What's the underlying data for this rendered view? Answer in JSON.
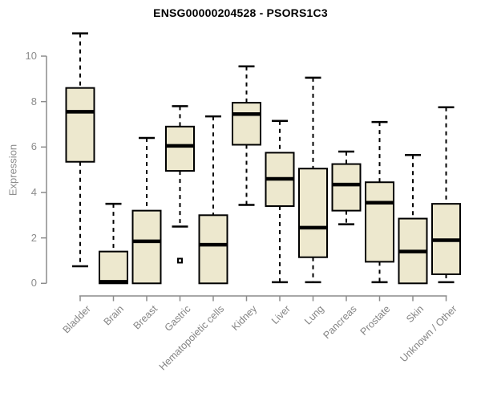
{
  "title": "ENSG00000204528 - PSORS1C3",
  "chart_data": {
    "type": "boxplot",
    "title": "ENSG00000204528 - PSORS1C3",
    "ylabel": "Expression",
    "xlabel": "",
    "ylim": [
      0,
      10
    ],
    "yticks": [
      0,
      2,
      4,
      6,
      8,
      10
    ],
    "grid": false,
    "legend": "none",
    "categories": [
      "Bladder",
      "Brain",
      "Breast",
      "Gastric",
      "Hematopoietic cells",
      "Kidney",
      "Liver",
      "Lung",
      "Pancreas",
      "Prostate",
      "Skin",
      "Unknown / Other"
    ],
    "series": [
      {
        "name": "Bladder",
        "min": 0.75,
        "q1": 5.35,
        "median": 7.55,
        "q3": 8.6,
        "max": 11.0,
        "outliers": []
      },
      {
        "name": "Brain",
        "min": 0.0,
        "q1": 0.0,
        "median": 0.07,
        "q3": 1.4,
        "max": 3.5,
        "outliers": []
      },
      {
        "name": "Breast",
        "min": 0.0,
        "q1": 0.0,
        "median": 1.85,
        "q3": 3.2,
        "max": 6.4,
        "outliers": []
      },
      {
        "name": "Gastric",
        "min": 2.5,
        "q1": 4.95,
        "median": 6.05,
        "q3": 6.9,
        "max": 7.8,
        "outliers": [
          1.0
        ]
      },
      {
        "name": "Hematopoietic cells",
        "min": 0.0,
        "q1": 0.0,
        "median": 1.7,
        "q3": 3.0,
        "max": 7.35,
        "outliers": []
      },
      {
        "name": "Kidney",
        "min": 3.45,
        "q1": 6.1,
        "median": 7.45,
        "q3": 7.95,
        "max": 9.55,
        "outliers": []
      },
      {
        "name": "Liver",
        "min": 0.05,
        "q1": 3.4,
        "median": 4.6,
        "q3": 5.75,
        "max": 7.15,
        "outliers": []
      },
      {
        "name": "Lung",
        "min": 0.05,
        "q1": 1.15,
        "median": 2.45,
        "q3": 5.05,
        "max": 9.05,
        "outliers": []
      },
      {
        "name": "Pancreas",
        "min": 2.6,
        "q1": 3.2,
        "median": 4.35,
        "q3": 5.25,
        "max": 5.8,
        "outliers": []
      },
      {
        "name": "Prostate",
        "min": 0.05,
        "q1": 0.95,
        "median": 3.55,
        "q3": 4.45,
        "max": 7.1,
        "outliers": []
      },
      {
        "name": "Skin",
        "min": 0.0,
        "q1": 0.0,
        "median": 1.4,
        "q3": 2.85,
        "max": 5.65,
        "outliers": []
      },
      {
        "name": "Unknown / Other",
        "min": 0.05,
        "q1": 0.4,
        "median": 1.9,
        "q3": 3.5,
        "max": 7.75,
        "outliers": []
      }
    ],
    "colors": {
      "box_fill": "#ede8ce",
      "box_border": "#000000",
      "median": "#000000",
      "whisker": "#000000",
      "outlier": "#000000",
      "axis": "#8c8c8c",
      "tick_label": "#8c8c8c",
      "title": "#000000",
      "background": "#ffffff"
    }
  }
}
